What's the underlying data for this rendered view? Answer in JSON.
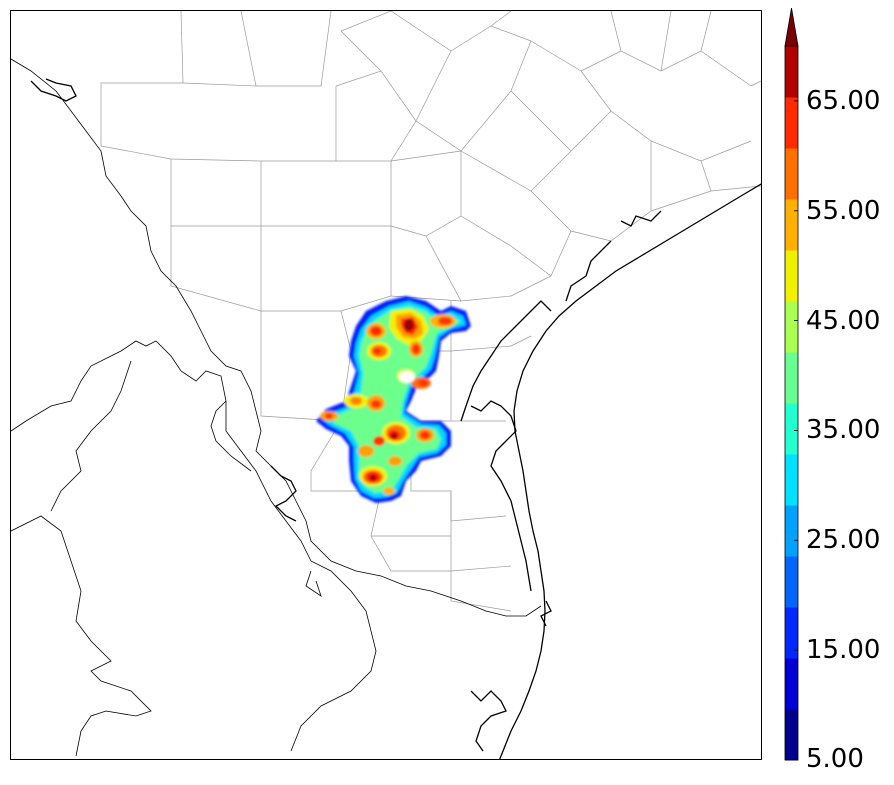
{
  "colorbar": {
    "ticks": [
      "5.00",
      "15.00",
      "25.00",
      "35.00",
      "45.00",
      "55.00",
      "65.00"
    ],
    "tick_values": [
      5,
      15,
      25,
      35,
      45,
      55,
      65
    ],
    "min": 5,
    "max": 70,
    "extend": "max",
    "colors": [
      "#00008f",
      "#0000d6",
      "#0028ff",
      "#0066ff",
      "#00a2ff",
      "#00e0ff",
      "#22ffd0",
      "#66ff90",
      "#aaff50",
      "#f0f000",
      "#ffb000",
      "#ff7000",
      "#ff2a00",
      "#b00000"
    ],
    "extend_color": "#7a0000"
  },
  "map": {
    "state_border_color": "#000000",
    "county_line_color": "#9a9a9a",
    "coastline_color": "#000000"
  }
}
